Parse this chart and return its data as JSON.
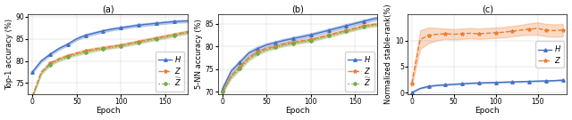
{
  "epochs": [
    0,
    10,
    20,
    30,
    40,
    50,
    60,
    70,
    80,
    90,
    100,
    110,
    120,
    130,
    140,
    150,
    160,
    170,
    180
  ],
  "panel_a": {
    "title": "(a)",
    "ylabel": "Top-1 accuracy (%)",
    "xlabel": "Epoch",
    "ylim": [
      72.5,
      90.5
    ],
    "yticks": [
      75,
      80,
      85,
      90
    ],
    "xlim": [
      -5,
      175
    ],
    "xticks": [
      0,
      50,
      100,
      150
    ],
    "H_mean": [
      77.5,
      80.0,
      81.5,
      82.8,
      83.8,
      85.0,
      85.8,
      86.3,
      86.8,
      87.2,
      87.5,
      87.8,
      88.1,
      88.3,
      88.5,
      88.7,
      88.9,
      89.0,
      89.1
    ],
    "H_std": [
      0.3,
      0.3,
      0.3,
      0.3,
      0.3,
      0.3,
      0.3,
      0.3,
      0.3,
      0.3,
      0.3,
      0.3,
      0.3,
      0.3,
      0.3,
      0.3,
      0.3,
      0.3,
      0.3
    ],
    "Z_mean": [
      72.0,
      77.5,
      79.5,
      80.5,
      81.2,
      81.8,
      82.3,
      82.7,
      83.0,
      83.3,
      83.6,
      84.0,
      84.4,
      84.8,
      85.2,
      85.6,
      86.0,
      86.4,
      86.8
    ],
    "Z_std": [
      0.3,
      0.3,
      0.3,
      0.3,
      0.3,
      0.3,
      0.3,
      0.3,
      0.3,
      0.3,
      0.3,
      0.3,
      0.3,
      0.3,
      0.3,
      0.3,
      0.3,
      0.3,
      0.3
    ],
    "Zt_mean": [
      72.0,
      77.2,
      79.2,
      80.2,
      80.9,
      81.5,
      82.0,
      82.4,
      82.8,
      83.1,
      83.4,
      83.8,
      84.2,
      84.6,
      85.0,
      85.4,
      85.8,
      86.2,
      86.6
    ],
    "Zt_std": [
      0.3,
      0.3,
      0.3,
      0.3,
      0.3,
      0.3,
      0.3,
      0.3,
      0.3,
      0.3,
      0.3,
      0.3,
      0.3,
      0.3,
      0.3,
      0.3,
      0.3,
      0.3,
      0.3
    ]
  },
  "panel_b": {
    "title": "(b)",
    "ylabel": "5-NN accuracy (%)",
    "xlabel": "Epoch",
    "ylim": [
      69.5,
      87.0
    ],
    "yticks": [
      70,
      75,
      80,
      85
    ],
    "xlim": [
      -5,
      175
    ],
    "xticks": [
      0,
      50,
      100,
      150
    ],
    "H_mean": [
      70.5,
      74.5,
      76.5,
      78.5,
      79.5,
      80.3,
      80.8,
      81.3,
      81.7,
      82.1,
      82.5,
      83.0,
      83.5,
      84.0,
      84.5,
      85.0,
      85.5,
      86.0,
      86.3
    ],
    "H_std": [
      0.5,
      0.5,
      0.5,
      0.5,
      0.5,
      0.4,
      0.4,
      0.4,
      0.4,
      0.4,
      0.4,
      0.4,
      0.4,
      0.4,
      0.4,
      0.4,
      0.4,
      0.4,
      0.4
    ],
    "Z_mean": [
      70.0,
      73.5,
      75.5,
      77.5,
      78.8,
      79.5,
      80.0,
      80.5,
      80.9,
      81.2,
      81.5,
      82.0,
      82.5,
      83.0,
      83.5,
      84.0,
      84.5,
      84.8,
      85.1
    ],
    "Z_std": [
      0.4,
      0.4,
      0.4,
      0.4,
      0.4,
      0.3,
      0.3,
      0.3,
      0.3,
      0.3,
      0.3,
      0.3,
      0.3,
      0.3,
      0.3,
      0.3,
      0.3,
      0.3,
      0.3
    ],
    "Zt_mean": [
      70.0,
      73.2,
      75.2,
      77.2,
      78.5,
      79.2,
      79.8,
      80.3,
      80.7,
      81.0,
      81.3,
      81.8,
      82.3,
      82.8,
      83.3,
      83.8,
      84.3,
      84.6,
      84.9
    ],
    "Zt_std": [
      0.4,
      0.4,
      0.4,
      0.4,
      0.4,
      0.3,
      0.3,
      0.3,
      0.3,
      0.3,
      0.3,
      0.3,
      0.3,
      0.3,
      0.3,
      0.3,
      0.3,
      0.3,
      0.3
    ]
  },
  "panel_c": {
    "title": "(c)",
    "ylabel": "Normalized stable-rank(%)",
    "xlabel": "Epoch",
    "ylim": [
      -0.3,
      15.0
    ],
    "yticks": [
      0,
      5,
      10
    ],
    "xlim": [
      -5,
      185
    ],
    "xticks": [
      0,
      50,
      100,
      150
    ],
    "H_mean": [
      0.0,
      0.8,
      1.2,
      1.4,
      1.5,
      1.6,
      1.7,
      1.8,
      1.85,
      1.9,
      1.95,
      2.0,
      2.05,
      2.1,
      2.15,
      2.2,
      2.25,
      2.3,
      2.4
    ],
    "H_std": [
      0.02,
      0.08,
      0.08,
      0.08,
      0.08,
      0.08,
      0.08,
      0.08,
      0.08,
      0.08,
      0.08,
      0.08,
      0.08,
      0.08,
      0.08,
      0.08,
      0.08,
      0.08,
      0.08
    ],
    "Z_mean": [
      1.8,
      10.2,
      11.0,
      11.2,
      11.3,
      11.2,
      11.3,
      11.4,
      11.3,
      11.4,
      11.5,
      11.6,
      11.8,
      12.0,
      12.2,
      12.3,
      12.0,
      11.9,
      12.0
    ],
    "Z_std": [
      0.5,
      1.8,
      1.5,
      1.2,
      1.0,
      1.0,
      1.0,
      1.0,
      1.0,
      1.0,
      1.0,
      1.0,
      1.0,
      1.0,
      1.1,
      1.2,
      1.2,
      1.2,
      1.2
    ]
  },
  "color_H": "#4472c4",
  "color_Z": "#ed7d31",
  "color_Zt": "#70ad47",
  "fig_bg": "#ffffff"
}
